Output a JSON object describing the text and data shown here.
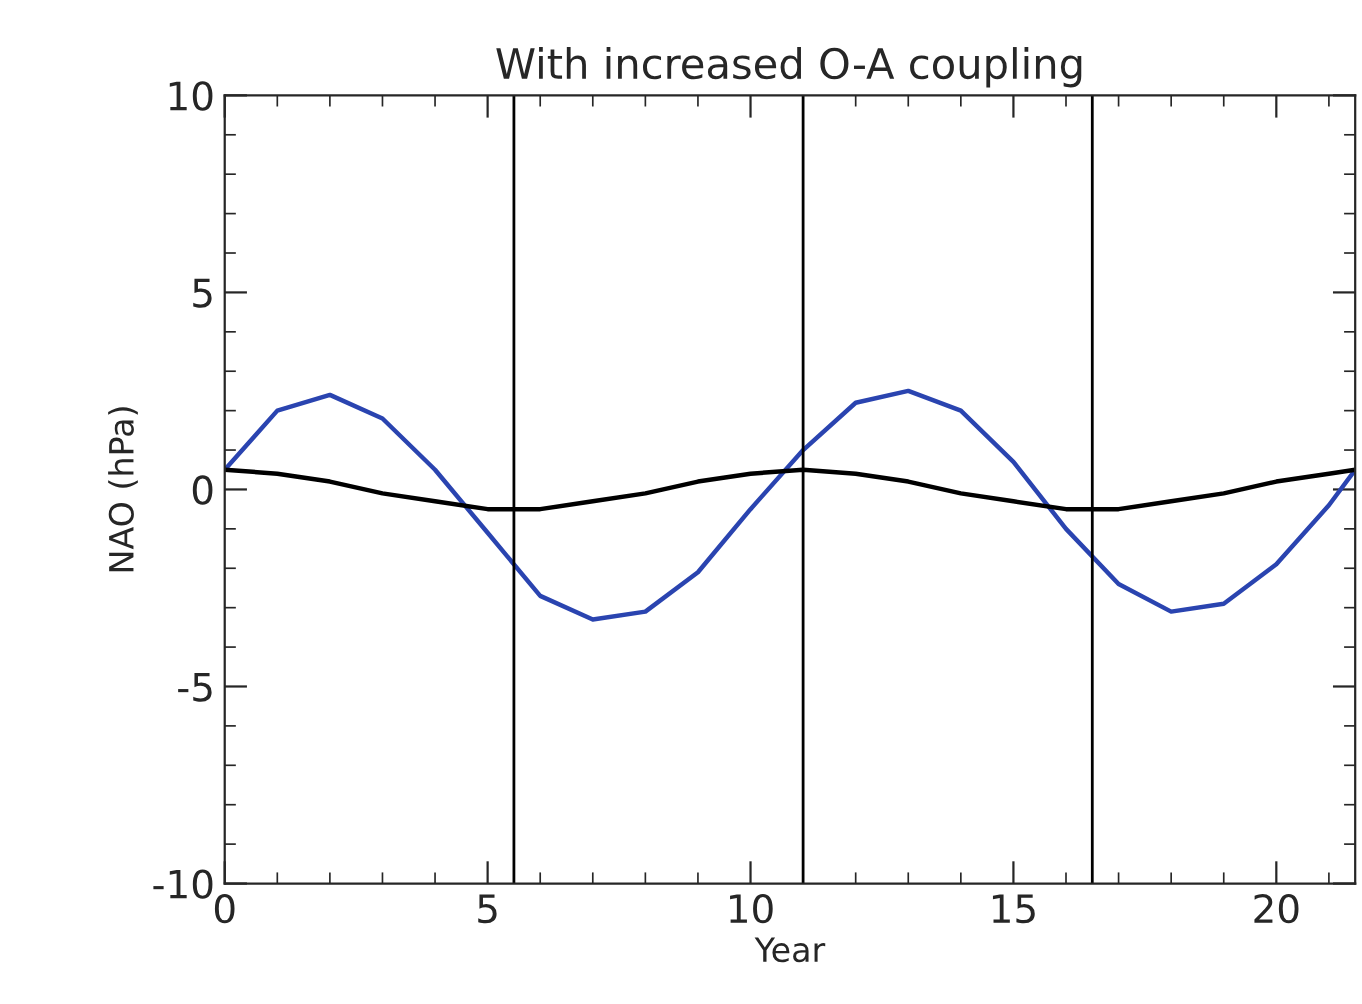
{
  "chart_data": {
    "type": "line",
    "title": "With increased O-A coupling",
    "xlabel": "Year",
    "ylabel": "NAO (hPa)",
    "xlim": [
      0,
      21.5
    ],
    "xticks": [
      0,
      5,
      10,
      15,
      20
    ],
    "ylim": [
      -10,
      10
    ],
    "yticks": [
      -10,
      -5,
      0,
      5,
      10
    ],
    "grid": false,
    "legend": false,
    "series": [
      {
        "color": "#2a44b0",
        "x": [
          0,
          1,
          2,
          3,
          4,
          5,
          6,
          7,
          8,
          9,
          10,
          11,
          12,
          13,
          14,
          15,
          16,
          17,
          18,
          19,
          20,
          21,
          21.5
        ],
        "values": [
          0.5,
          2.0,
          2.4,
          1.8,
          0.5,
          -1.1,
          -2.7,
          -3.3,
          -3.1,
          -2.1,
          -0.5,
          1.0,
          2.2,
          2.5,
          2.0,
          0.7,
          -1.0,
          -2.4,
          -3.1,
          -2.9,
          -1.9,
          -0.4,
          0.5
        ]
      },
      {
        "color": "#000000",
        "x": [
          0,
          1,
          2,
          3,
          4,
          5,
          6,
          7,
          8,
          9,
          10,
          11,
          12,
          13,
          14,
          15,
          16,
          17,
          18,
          19,
          20,
          21,
          21.5
        ],
        "values": [
          0.5,
          0.4,
          0.2,
          -0.1,
          -0.3,
          -0.5,
          -0.5,
          -0.3,
          -0.1,
          0.2,
          0.4,
          0.5,
          0.4,
          0.2,
          -0.1,
          -0.3,
          -0.5,
          -0.5,
          -0.3,
          -0.1,
          0.2,
          0.4,
          0.5
        ]
      }
    ],
    "ref_lines": [
      {
        "axis": "x",
        "value": 5.5,
        "color": "#000000"
      },
      {
        "axis": "x",
        "value": 11,
        "color": "#000000"
      },
      {
        "axis": "x",
        "value": 16.5,
        "color": "#000000"
      }
    ]
  }
}
